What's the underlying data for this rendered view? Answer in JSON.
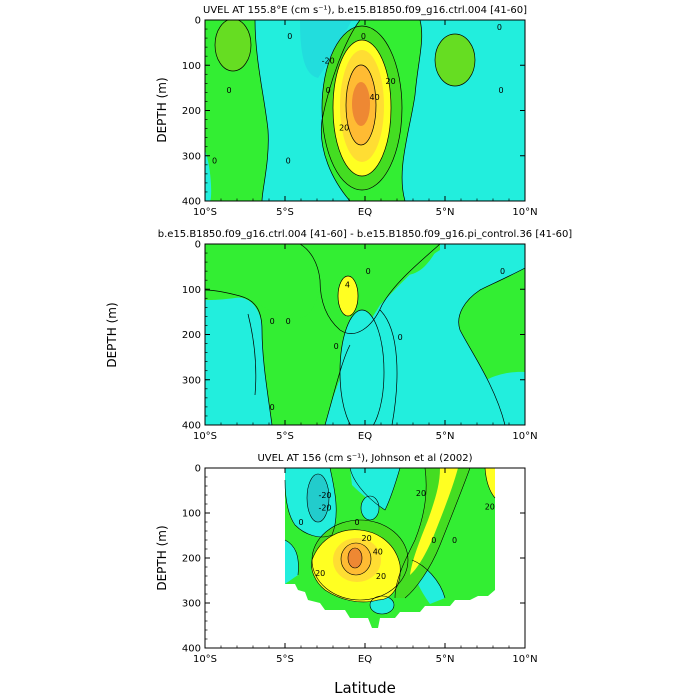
{
  "colors": {
    "cyan": "#22eedd",
    "light_green": "#33ee33",
    "green": "#44dd22",
    "yellow": "#ffff22",
    "orange": "#ffbb33",
    "dark_orange": "#ee8833",
    "blank": "#ffffff",
    "line": "#000000"
  },
  "x_label": "Latitude",
  "chart_data": [
    {
      "type": "heatmap",
      "subtype": "contour",
      "title": "UVEL AT 155.8°E (cm s⁻¹), b.e15.B1850.f09_g16.ctrl.004 [41-60]",
      "ylabel": "DEPTH (m)",
      "xlim": [
        -10,
        10
      ],
      "ylim": [
        400,
        0
      ],
      "y_inverted": true,
      "xticks": [
        "10°S",
        "5°S",
        "EQ",
        "5°N",
        "10°N"
      ],
      "yticks": [
        "0",
        "100",
        "200",
        "300",
        "400"
      ],
      "contour_labels": [
        {
          "text": "-20",
          "x": -2.3,
          "y": 90
        },
        {
          "text": "0",
          "x": -0.1,
          "y": 35
        },
        {
          "text": "0",
          "x": -4.7,
          "y": 35
        },
        {
          "text": "0",
          "x": -8.5,
          "y": 155
        },
        {
          "text": "0",
          "x": -9.4,
          "y": 310
        },
        {
          "text": "0",
          "x": -4.8,
          "y": 310
        },
        {
          "text": "0",
          "x": -2.3,
          "y": 155
        },
        {
          "text": "0",
          "x": 8.5,
          "y": 155
        },
        {
          "text": "0",
          "x": 8.4,
          "y": 15
        },
        {
          "text": "20",
          "x": 1.6,
          "y": 135
        },
        {
          "text": "40",
          "x": 0.6,
          "y": 170
        },
        {
          "text": "20",
          "x": -1.3,
          "y": 238
        }
      ],
      "features": [
        {
          "kind": "westward core",
          "center": [
            -2.3,
            60
          ],
          "min": -20
        },
        {
          "kind": "equatorial undercurrent core",
          "center": [
            -0.3,
            195
          ],
          "max": 70
        }
      ]
    },
    {
      "type": "heatmap",
      "subtype": "contour",
      "title": "b.e15.B1850.f09_g16.ctrl.004 [41-60] - b.e15.B1850.f09_g16.pi_control.36 [41-60]",
      "ylabel": "DEPTH (m)",
      "xlim": [
        -10,
        10
      ],
      "ylim": [
        400,
        0
      ],
      "y_inverted": true,
      "xticks": [
        "10°S",
        "5°S",
        "EQ",
        "5°N",
        "10°N"
      ],
      "yticks": [
        "0",
        "100",
        "200",
        "300",
        "400"
      ],
      "contour_labels": [
        {
          "text": "4",
          "x": -1.1,
          "y": 90
        },
        {
          "text": "0",
          "x": 0.2,
          "y": 60
        },
        {
          "text": "0",
          "x": 8.6,
          "y": 60
        },
        {
          "text": "0",
          "x": -4.8,
          "y": 170
        },
        {
          "text": "0",
          "x": -5.8,
          "y": 170
        },
        {
          "text": "0",
          "x": -1.8,
          "y": 225
        },
        {
          "text": "0",
          "x": 2.2,
          "y": 205
        },
        {
          "text": "0",
          "x": -5.8,
          "y": 360
        }
      ],
      "features": [
        {
          "kind": "positive maximum",
          "center": [
            -1.0,
            105
          ],
          "max": 8
        },
        {
          "kind": "negative region",
          "center": [
            -0.2,
            260
          ],
          "min": -4
        }
      ]
    },
    {
      "type": "heatmap",
      "subtype": "contour",
      "title": "UVEL AT 156 (cm s⁻¹), Johnson et al (2002)",
      "ylabel": "DEPTH (m)",
      "xlim": [
        -10,
        10
      ],
      "ylim": [
        400,
        0
      ],
      "y_inverted": true,
      "xticks": [
        "10°S",
        "5°S",
        "EQ",
        "5°N",
        "10°N"
      ],
      "yticks": [
        "0",
        "100",
        "200",
        "300",
        "400"
      ],
      "data_extent_lat": [
        -5,
        8
      ],
      "contour_labels": [
        {
          "text": "-20",
          "x": -2.5,
          "y": 60
        },
        {
          "text": "-20",
          "x": -2.5,
          "y": 88
        },
        {
          "text": "0",
          "x": -0.5,
          "y": 120
        },
        {
          "text": "20",
          "x": 0.1,
          "y": 155
        },
        {
          "text": "40",
          "x": 0.8,
          "y": 185
        },
        {
          "text": "20",
          "x": 1.0,
          "y": 240
        },
        {
          "text": "20",
          "x": -2.8,
          "y": 233
        },
        {
          "text": "20",
          "x": 3.5,
          "y": 55
        },
        {
          "text": "0",
          "x": 4.3,
          "y": 160
        },
        {
          "text": "0",
          "x": 5.6,
          "y": 160
        },
        {
          "text": "0",
          "x": -4.0,
          "y": 120
        },
        {
          "text": "20",
          "x": 7.8,
          "y": 85
        }
      ],
      "features": [
        {
          "kind": "equatorial undercurrent core",
          "center": [
            -0.4,
            200
          ],
          "max": 60
        },
        {
          "kind": "westward core",
          "center": [
            -2.5,
            70
          ],
          "min": -30
        }
      ]
    }
  ]
}
